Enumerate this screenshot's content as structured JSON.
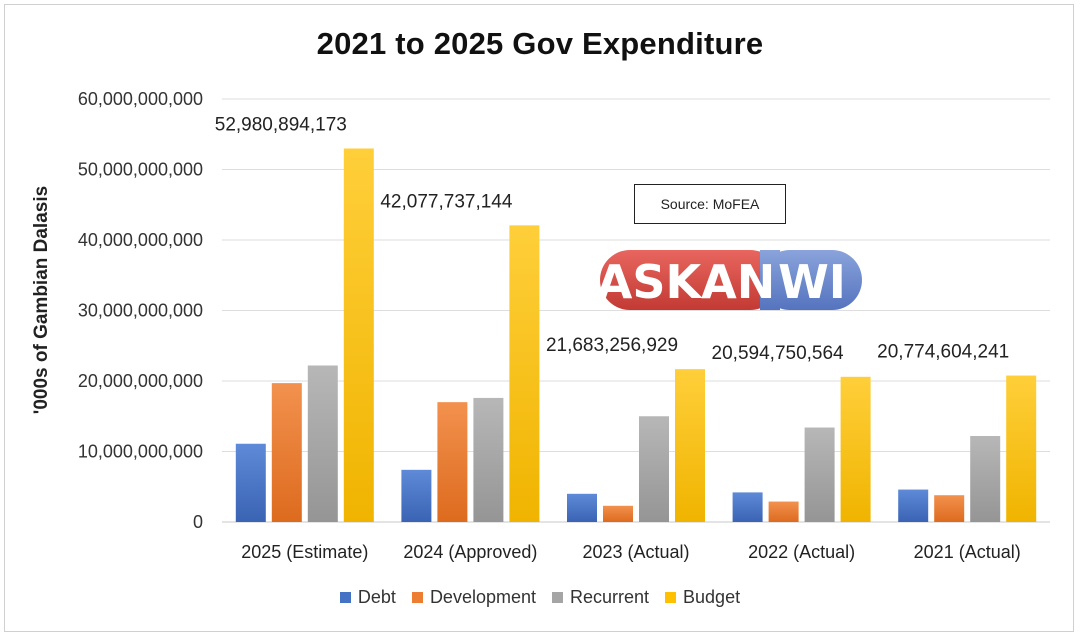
{
  "chart_data": {
    "type": "bar",
    "title": "2021 to 2025 Gov Expenditure",
    "ylabel": "'000s of Gambian Dalasis",
    "xlabel": "",
    "ylim": [
      0,
      60000000000
    ],
    "yticks": [
      0,
      10000000000,
      20000000000,
      30000000000,
      40000000000,
      50000000000,
      60000000000
    ],
    "ytick_labels": [
      "0",
      "10,000,000,000",
      "20,000,000,000",
      "30,000,000,000",
      "40,000,000,000",
      "50,000,000,000",
      "60,000,000,000"
    ],
    "grid": true,
    "legend_position": "bottom",
    "categories": [
      "2025 (Estimate)",
      "2024 (Approved)",
      "2023 (Actual)",
      "2022 (Actual)",
      "2021 (Actual)"
    ],
    "series": [
      {
        "name": "Debt",
        "color": "#4472C4",
        "values": [
          11100000000,
          7400000000,
          4000000000,
          4200000000,
          4600000000
        ]
      },
      {
        "name": "Development",
        "color": "#ED7D31",
        "values": [
          19700000000,
          17000000000,
          2300000000,
          2900000000,
          3800000000
        ]
      },
      {
        "name": "Recurrent",
        "color": "#A5A5A5",
        "values": [
          22200000000,
          17600000000,
          15000000000,
          13400000000,
          12200000000
        ]
      },
      {
        "name": "Budget",
        "color": "#FFC000",
        "values": [
          52980894173,
          42077737144,
          21683256929,
          20594750564,
          20774604241
        ]
      }
    ],
    "data_labels": {
      "series": "Budget",
      "labels": [
        "52,980,894,173",
        "42,077,737,144",
        "21,683,256,929",
        "20,594,750,564",
        "20,774,604,241"
      ]
    },
    "annotation": "Source: MoFEA"
  },
  "watermark": {
    "text": "ASKANWI",
    "part1": "ASKAN",
    "part2": "WI",
    "color_main": "#D9463F",
    "color_accent": "#6A86C9"
  }
}
